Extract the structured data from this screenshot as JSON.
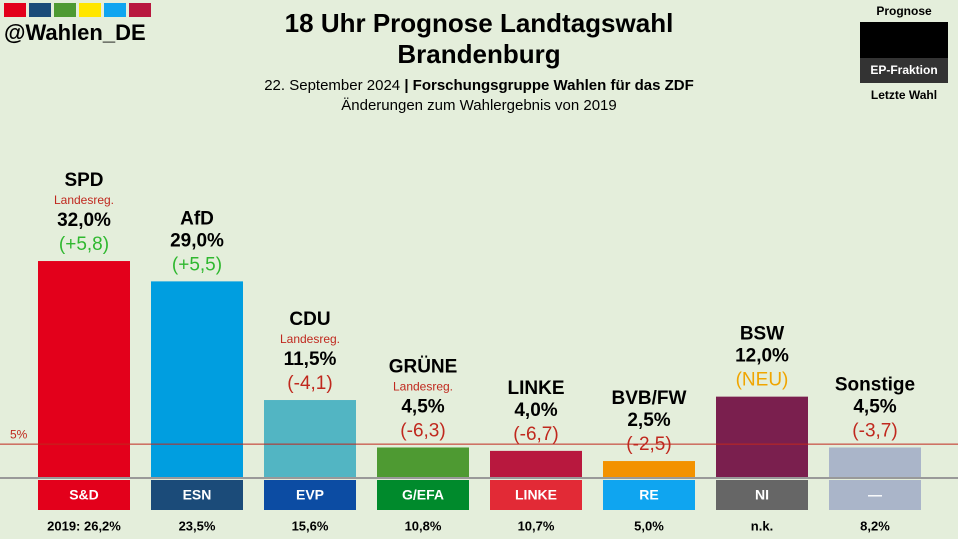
{
  "handle": "@Wahlen_DE",
  "legend": {
    "top": "Prognose",
    "middle": "EP-Fraktion",
    "bottom": "Letzte Wahl"
  },
  "chart_data": {
    "type": "bar",
    "title": [
      "18 Uhr Prognose Landtagswahl",
      "Brandenburg"
    ],
    "subtitle_date": "22. September 2024",
    "subtitle_source": "| Forschungsgruppe Wahlen für das ZDF",
    "subtitle_note": "Änderungen zum Wahlergebnis von 2019",
    "categories": [
      "SPD",
      "AfD",
      "CDU",
      "GRÜNE",
      "LINKE",
      "BVB/FW",
      "BSW",
      "Sonstige"
    ],
    "values": [
      32.0,
      29.0,
      11.5,
      4.5,
      4.0,
      2.5,
      12.0,
      4.5
    ],
    "value_labels": [
      "32,0%",
      "29,0%",
      "11,5%",
      "4,5%",
      "4,0%",
      "2,5%",
      "12,0%",
      "4,5%"
    ],
    "colors": [
      "#e3001b",
      "#009ee0",
      "#52b5c3",
      "#4e9a32",
      "#b8183e",
      "#f39200",
      "#7a1f4e",
      "#aab5c9"
    ],
    "notes": [
      "Landesreg.",
      null,
      "Landesreg.",
      "Landesreg.",
      null,
      null,
      null,
      null
    ],
    "changes": [
      "(+5,8)",
      "(+5,5)",
      "(-4,1)",
      "(-6,3)",
      "(-6,7)",
      "(-2,5)",
      "(NEU)",
      "(-3,7)"
    ],
    "change_colors": [
      "#2fb82f",
      "#2fb82f",
      "#c0281e",
      "#c0281e",
      "#c0281e",
      "#c0281e",
      "#f0a500",
      "#c0281e"
    ],
    "factions": [
      "S&D",
      "ESN",
      "EVP",
      "G/EFA",
      "LINKE",
      "RE",
      "NI",
      "—"
    ],
    "faction_colors": [
      "#e3001b",
      "#1b4b79",
      "#0c4ca3",
      "#008a2c",
      "#e22a36",
      "#0fa5f0",
      "#666666",
      "#aab5c9"
    ],
    "last_election": [
      "2019: 26,2%",
      "23,5%",
      "15,6%",
      "10,8%",
      "10,7%",
      "5,0%",
      "n.k.",
      "8,2%"
    ],
    "threshold": {
      "value": 5,
      "label": "5%"
    },
    "ylim": [
      0,
      40
    ]
  }
}
